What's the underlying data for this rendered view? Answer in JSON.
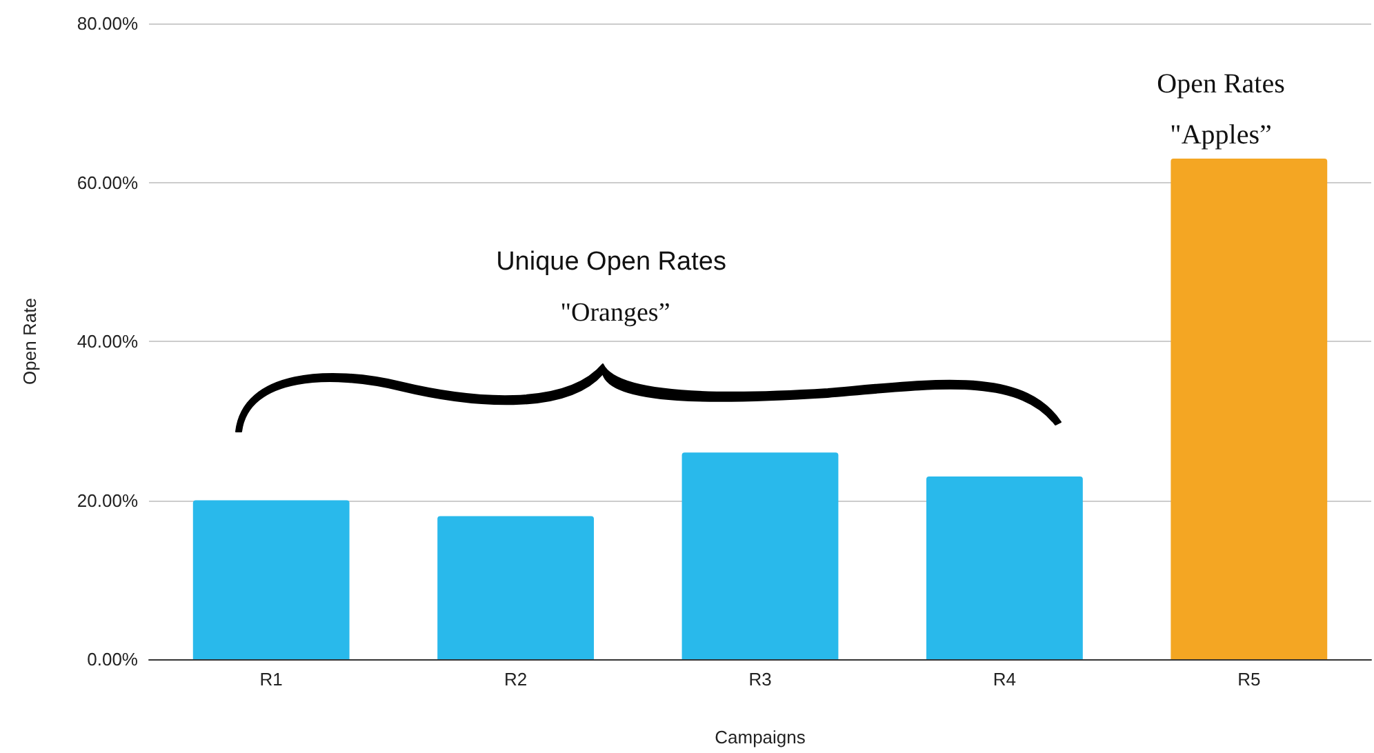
{
  "chart_data": {
    "type": "bar",
    "xlabel": "Campaigns",
    "ylabel": "Open Rate",
    "categories": [
      "R1",
      "R2",
      "R3",
      "R4",
      "R5"
    ],
    "values": [
      20,
      18,
      26,
      23,
      63
    ],
    "colors": [
      "#29b9eb",
      "#29b9eb",
      "#29b9eb",
      "#29b9eb",
      "#f4a623"
    ],
    "ylim": [
      0,
      80
    ],
    "yticks": [
      {
        "value": 0,
        "label": "0.00%"
      },
      {
        "value": 20,
        "label": "20.00%"
      },
      {
        "value": 40,
        "label": "40.00%"
      },
      {
        "value": 60,
        "label": "60.00%"
      },
      {
        "value": 80,
        "label": "80.00%"
      }
    ],
    "grid": "y",
    "annotations": [
      "Unique Open Rates",
      "\"Oranges”",
      "Open Rates",
      "\"Apples”"
    ]
  }
}
